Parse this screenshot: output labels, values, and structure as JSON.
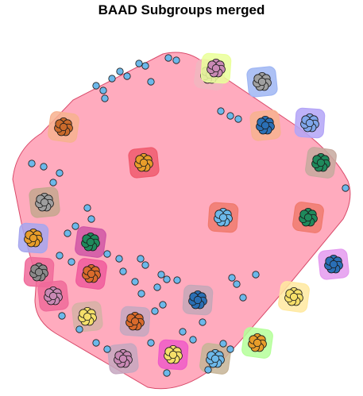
{
  "title": "BAAD Subgroups merged",
  "palette": {
    "big_hull": "#ff9fb5",
    "node_blue": "#6cb8ea",
    "stroke": "#1a1a1a"
  },
  "groups": [
    {
      "name": "top-center-1",
      "hull": "#f1b6c0",
      "petal": "#c989b5",
      "center": "#c989b5"
    },
    {
      "name": "top-right-1",
      "hull": "#9fb6f3",
      "petal": "#a0a0a0",
      "center": "#a0a0a0"
    },
    {
      "name": "top-center-2",
      "hull": "#eaff9a",
      "petal": "#c989b5",
      "center": "#c989b5"
    },
    {
      "name": "left-top",
      "hull": "#f7b18f",
      "petal": "#c96a2b",
      "center": "#c96a2b"
    },
    {
      "name": "center-right-1",
      "hull": "#f7b18f",
      "petal": "#2a6fb5",
      "center": "#2a6fb5"
    },
    {
      "name": "right-top",
      "hull": "#b3a4f7",
      "petal": "#7fa6ea",
      "center": "#7fa6ea"
    },
    {
      "name": "right-mid",
      "hull": "#c7a99f",
      "petal": "#1f8a5c",
      "center": "#1f8a5c"
    },
    {
      "name": "center-1",
      "hull": "#f05a6e",
      "petal": "#e89d2a",
      "center": "#e89d2a"
    },
    {
      "name": "center-2",
      "hull": "#f07a6e",
      "petal": "#6cb8ea",
      "center": "#6cb8ea"
    },
    {
      "name": "right-mid-2",
      "hull": "#f07a6e",
      "petal": "#1f8a5c",
      "center": "#1f8a5c"
    },
    {
      "name": "left-mid",
      "hull": "#c6a78f",
      "petal": "#9e9e9e",
      "center": "#9e9e9e"
    },
    {
      "name": "left-lower-1",
      "hull": "#a6a6ee",
      "petal": "#e89d2a",
      "center": "#e89d2a"
    },
    {
      "name": "left-lower-2",
      "hull": "#d056a6",
      "petal": "#1f8a5c",
      "center": "#1f8a5c"
    },
    {
      "name": "right-lower",
      "hull": "#e49aef",
      "petal": "#2a6fb5",
      "center": "#2a6fb5"
    },
    {
      "name": "left-lower-3",
      "hull": "#f06a9a",
      "petal": "#8a8a8a",
      "center": "#8a8a8a"
    },
    {
      "name": "left-lower-4",
      "hull": "#f05a9c",
      "petal": "#d96a2b",
      "center": "#d96a2b"
    },
    {
      "name": "bottom-left-1",
      "hull": "#f06a9a",
      "petal": "#c989b5",
      "center": "#c989b5"
    },
    {
      "name": "bottom-center-1",
      "hull": "#c6a7b8",
      "petal": "#2a6fb5",
      "center": "#2a6fb5"
    },
    {
      "name": "bottom-right-1",
      "hull": "#ffe9a0",
      "petal": "#f5df6a",
      "center": "#f5df6a"
    },
    {
      "name": "bottom-left-2",
      "hull": "#d6b1a6",
      "petal": "#f5df6a",
      "center": "#f5df6a"
    },
    {
      "name": "bottom-center-2",
      "hull": "#c6a7c0",
      "petal": "#d96a2b",
      "center": "#d96a2b"
    },
    {
      "name": "bottom-right-2",
      "hull": "#b5ff9a",
      "petal": "#e89d2a",
      "center": "#e89d2a"
    },
    {
      "name": "bottom-center-3",
      "hull": "#c6a7c0",
      "petal": "#c989b5",
      "center": "#c989b5"
    },
    {
      "name": "bottom-center-4",
      "hull": "#f05ac8",
      "petal": "#f5df6a",
      "center": "#f5df6a"
    },
    {
      "name": "bottom-right-3",
      "hull": "#c6b496",
      "petal": "#6cb8ea",
      "center": "#6cb8ea"
    }
  ]
}
